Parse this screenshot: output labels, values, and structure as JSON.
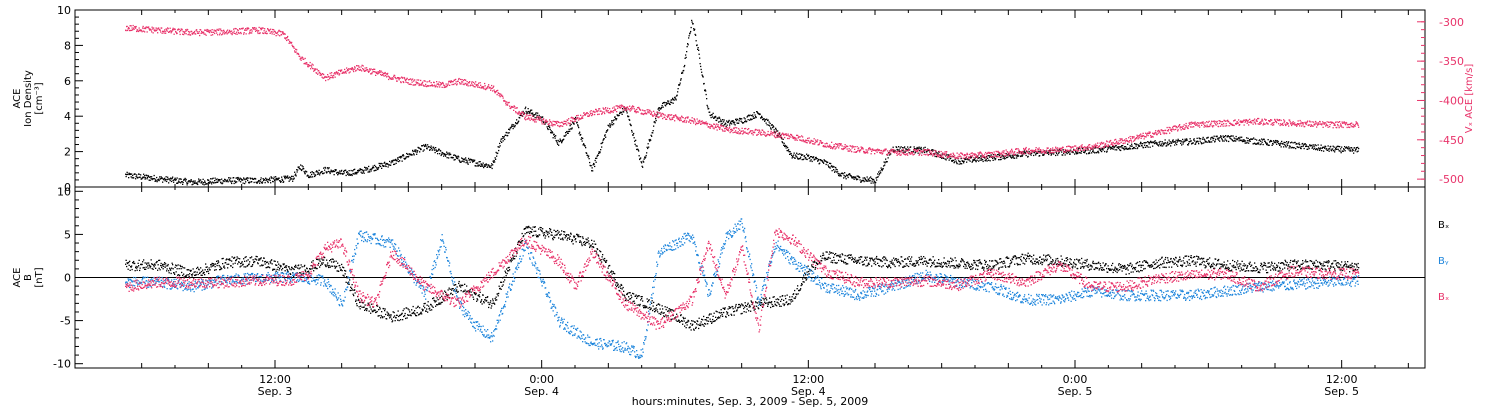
{
  "chart_data": [
    {
      "type": "scatter",
      "panel": "top",
      "left_axis": {
        "label_lines": [
          "ACE",
          "Ion Density",
          "[cm⁻³]"
        ],
        "ylim": [
          0,
          10
        ],
        "ticks": [
          0,
          2,
          4,
          6,
          8,
          10
        ],
        "color": "#000000"
      },
      "right_axis": {
        "label": "Vₓ ACE [km/s]",
        "ylim": [
          -510,
          -285
        ],
        "ticks": [
          -300,
          -350,
          -400,
          -450,
          -500
        ],
        "color": "#e8336a"
      },
      "series": [
        {
          "axis": "left",
          "color": "#000000",
          "points": [
            [
              0,
              0.7
            ],
            [
              2,
              0.5
            ],
            [
              4,
              0.3
            ],
            [
              6,
              0.4
            ],
            [
              8,
              0.4
            ],
            [
              10,
              0.5
            ],
            [
              10.5,
              1.2
            ],
            [
              11,
              0.7
            ],
            [
              12,
              1.0
            ],
            [
              13,
              0.8
            ],
            [
              14,
              0.9
            ],
            [
              16,
              1.4
            ],
            [
              18,
              2.3
            ],
            [
              20,
              1.6
            ],
            [
              22,
              1.2
            ],
            [
              22.5,
              2.6
            ],
            [
              24,
              4.4
            ],
            [
              25,
              3.9
            ],
            [
              26,
              2.5
            ],
            [
              27,
              3.8
            ],
            [
              28,
              1.0
            ],
            [
              29,
              3.5
            ],
            [
              30,
              4.5
            ],
            [
              31,
              1.2
            ],
            [
              32,
              4.5
            ],
            [
              33,
              5.0
            ],
            [
              33.5,
              6.8
            ],
            [
              34,
              9.5
            ],
            [
              34.5,
              7.0
            ],
            [
              35,
              4.2
            ],
            [
              36,
              3.6
            ],
            [
              37,
              3.8
            ],
            [
              38,
              4.2
            ],
            [
              39,
              3.2
            ],
            [
              40,
              1.8
            ],
            [
              41,
              1.7
            ],
            [
              42,
              1.4
            ],
            [
              43,
              0.7
            ],
            [
              44,
              0.5
            ],
            [
              45,
              0.4
            ],
            [
              46,
              2.2
            ],
            [
              48,
              2.1
            ],
            [
              50,
              1.5
            ],
            [
              52,
              1.7
            ],
            [
              54,
              1.9
            ],
            [
              56,
              2.0
            ],
            [
              58,
              2.1
            ],
            [
              60,
              2.3
            ],
            [
              62,
              2.5
            ],
            [
              64,
              2.6
            ],
            [
              66,
              2.8
            ],
            [
              68,
              2.6
            ],
            [
              70,
              2.4
            ],
            [
              72,
              2.2
            ],
            [
              74,
              2.1
            ]
          ]
        },
        {
          "axis": "right",
          "color": "#e8336a",
          "points": [
            [
              0,
              -307
            ],
            [
              2,
              -310
            ],
            [
              4,
              -313
            ],
            [
              6,
              -312
            ],
            [
              8,
              -310
            ],
            [
              9.5,
              -315
            ],
            [
              10.5,
              -345
            ],
            [
              12,
              -370
            ],
            [
              14,
              -357
            ],
            [
              16,
              -370
            ],
            [
              17,
              -375
            ],
            [
              19,
              -380
            ],
            [
              20,
              -375
            ],
            [
              22,
              -383
            ],
            [
              23,
              -405
            ],
            [
              24,
              -420
            ],
            [
              25,
              -425
            ],
            [
              26,
              -430
            ],
            [
              28,
              -415
            ],
            [
              30,
              -408
            ],
            [
              32,
              -418
            ],
            [
              34,
              -425
            ],
            [
              36,
              -436
            ],
            [
              38,
              -440
            ],
            [
              40,
              -445
            ],
            [
              42,
              -455
            ],
            [
              44,
              -462
            ],
            [
              46,
              -465
            ],
            [
              48,
              -465
            ],
            [
              50,
              -470
            ],
            [
              52,
              -468
            ],
            [
              54,
              -463
            ],
            [
              56,
              -462
            ],
            [
              58,
              -458
            ],
            [
              60,
              -450
            ],
            [
              62,
              -440
            ],
            [
              64,
              -430
            ],
            [
              66,
              -428
            ],
            [
              68,
              -426
            ],
            [
              70,
              -428
            ],
            [
              72,
              -430
            ],
            [
              74,
              -430
            ]
          ]
        }
      ]
    },
    {
      "type": "scatter",
      "panel": "bottom",
      "left_axis": {
        "label_lines": [
          "ACE",
          "B",
          "[nT]"
        ],
        "ylim": [
          -10.5,
          10.5
        ],
        "ticks": [
          -10,
          -5,
          0,
          5,
          10
        ],
        "color": "#000000"
      },
      "legend": [
        {
          "label": "Bₓ",
          "color": "#000000"
        },
        {
          "label": "Bᵧ",
          "color": "#1f86dc"
        },
        {
          "label": "Bₓ",
          "color": "#e8336a"
        }
      ],
      "series": [
        {
          "name": "Bₓ",
          "color": "#000000",
          "points": [
            [
              0,
              1.5
            ],
            [
              2,
              1.5
            ],
            [
              4,
              0.5
            ],
            [
              6,
              1.8
            ],
            [
              8,
              2.0
            ],
            [
              10,
              0.8
            ],
            [
              11,
              1.2
            ],
            [
              12,
              2.0
            ],
            [
              13,
              1.0
            ],
            [
              14,
              -3.0
            ],
            [
              16,
              -4.5
            ],
            [
              18,
              -3.5
            ],
            [
              20,
              -1.0
            ],
            [
              22,
              -3.0
            ],
            [
              24,
              5.5
            ],
            [
              26,
              5.0
            ],
            [
              28,
              4.0
            ],
            [
              30,
              -2.0
            ],
            [
              32,
              -3.5
            ],
            [
              34,
              -5.5
            ],
            [
              36,
              -4.0
            ],
            [
              38,
              -3.0
            ],
            [
              40,
              -2.5
            ],
            [
              41,
              1.0
            ],
            [
              42,
              2.5
            ],
            [
              44,
              2.0
            ],
            [
              46,
              1.8
            ],
            [
              48,
              2.0
            ],
            [
              50,
              1.7
            ],
            [
              52,
              1.5
            ],
            [
              54,
              2.3
            ],
            [
              56,
              2.0
            ],
            [
              58,
              1.5
            ],
            [
              60,
              1.0
            ],
            [
              62,
              1.8
            ],
            [
              64,
              2.0
            ],
            [
              66,
              1.5
            ],
            [
              68,
              1.2
            ],
            [
              70,
              1.5
            ],
            [
              72,
              1.5
            ],
            [
              74,
              1.3
            ]
          ]
        },
        {
          "name": "Bᵧ",
          "color": "#1f86dc",
          "points": [
            [
              0,
              -0.5
            ],
            [
              2,
              -0.5
            ],
            [
              4,
              -1.0
            ],
            [
              6,
              -0.2
            ],
            [
              8,
              0.0
            ],
            [
              10,
              0.1
            ],
            [
              12,
              -0.3
            ],
            [
              13,
              -3.0
            ],
            [
              14,
              5.0
            ],
            [
              16,
              4.0
            ],
            [
              18,
              -2.0
            ],
            [
              19,
              4.5
            ],
            [
              20,
              -3.0
            ],
            [
              21,
              -5.5
            ],
            [
              22,
              -7.0
            ],
            [
              24,
              4.0
            ],
            [
              26,
              -5.0
            ],
            [
              28,
              -7.5
            ],
            [
              30,
              -8.0
            ],
            [
              31,
              -9.0
            ],
            [
              32,
              3.0
            ],
            [
              34,
              5.0
            ],
            [
              35,
              -2.0
            ],
            [
              36,
              4.5
            ],
            [
              37,
              6.5
            ],
            [
              38,
              -3.0
            ],
            [
              39,
              4.0
            ],
            [
              40,
              2.0
            ],
            [
              42,
              -1.0
            ],
            [
              44,
              -2.0
            ],
            [
              46,
              -1.0
            ],
            [
              48,
              0.3
            ],
            [
              50,
              -0.5
            ],
            [
              52,
              -1.0
            ],
            [
              54,
              -2.5
            ],
            [
              56,
              -2.5
            ],
            [
              58,
              -1.5
            ],
            [
              60,
              -2.0
            ],
            [
              62,
              -2.0
            ],
            [
              64,
              -2.0
            ],
            [
              66,
              -1.5
            ],
            [
              68,
              -1.0
            ],
            [
              70,
              -0.8
            ],
            [
              72,
              -0.5
            ],
            [
              74,
              -0.3
            ]
          ]
        },
        {
          "name": "Bₓ",
          "color": "#e8336a",
          "points": [
            [
              0,
              -1.0
            ],
            [
              2,
              -0.5
            ],
            [
              4,
              -0.5
            ],
            [
              6,
              -0.5
            ],
            [
              8,
              -0.3
            ],
            [
              10,
              -0.2
            ],
            [
              11,
              0.5
            ],
            [
              12,
              3.5
            ],
            [
              13,
              4.0
            ],
            [
              14,
              -2.0
            ],
            [
              15,
              -3.0
            ],
            [
              16,
              3.0
            ],
            [
              18,
              -1.0
            ],
            [
              20,
              -3.0
            ],
            [
              22,
              0.5
            ],
            [
              24,
              4.5
            ],
            [
              26,
              2.0
            ],
            [
              27,
              -1.0
            ],
            [
              28,
              3.0
            ],
            [
              30,
              -3.0
            ],
            [
              32,
              -5.5
            ],
            [
              34,
              -2.5
            ],
            [
              35,
              4.0
            ],
            [
              36,
              -2.0
            ],
            [
              37,
              3.5
            ],
            [
              38,
              -6.0
            ],
            [
              39,
              5.5
            ],
            [
              40,
              4.5
            ],
            [
              42,
              0.8
            ],
            [
              44,
              -0.5
            ],
            [
              46,
              -0.5
            ],
            [
              48,
              -0.3
            ],
            [
              50,
              -0.8
            ],
            [
              52,
              0.5
            ],
            [
              54,
              -0.5
            ],
            [
              56,
              1.5
            ],
            [
              58,
              -1.0
            ],
            [
              60,
              -1.0
            ],
            [
              62,
              0.0
            ],
            [
              64,
              0.3
            ],
            [
              66,
              0.5
            ],
            [
              68,
              -1.0
            ],
            [
              70,
              0.8
            ],
            [
              72,
              0.5
            ],
            [
              74,
              0.5
            ]
          ]
        }
      ]
    }
  ],
  "x_axis": {
    "range_hours": [
      -3,
      78
    ],
    "ticks": [
      {
        "h": 9,
        "time": "12:00",
        "date": "Sep. 3"
      },
      {
        "h": 25,
        "time": "0:00",
        "date": "Sep. 4"
      },
      {
        "h": 41,
        "time": "12:00",
        "date": "Sep. 4"
      },
      {
        "h": 57,
        "time": "0:00",
        "date": "Sep. 5"
      },
      {
        "h": 73,
        "time": "12:00",
        "date": "Sep. 5"
      }
    ],
    "title": "hours:minutes, Sep.  3, 2009 - Sep.  5, 2009"
  },
  "colors": {
    "black": "#000000",
    "red": "#e8336a",
    "blue": "#1f86dc"
  }
}
